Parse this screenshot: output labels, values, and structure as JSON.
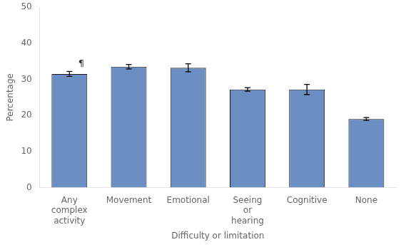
{
  "chart_data": {
    "type": "bar",
    "categories": [
      "Any\ncomplex\nactivity",
      "Movement",
      "Emotional",
      "Seeing\nor\nhearing",
      "Cognitive",
      "None"
    ],
    "values": [
      31.5,
      33.5,
      33.2,
      27.2,
      27.2,
      19.0
    ],
    "errors": [
      0.7,
      0.6,
      1.1,
      0.5,
      1.4,
      0.4
    ],
    "color": "#6b8fc2",
    "xlabel": "Difficulty or limitation",
    "ylabel": "Percentage",
    "ylim": [
      0,
      50
    ],
    "yticks": [
      0,
      10,
      20,
      30,
      40,
      50
    ],
    "annotations": [
      {
        "text": "¶",
        "x": "Any\ncomplex\nactivity",
        "y": 33.0
      }
    ],
    "grid": false,
    "legend": false
  }
}
